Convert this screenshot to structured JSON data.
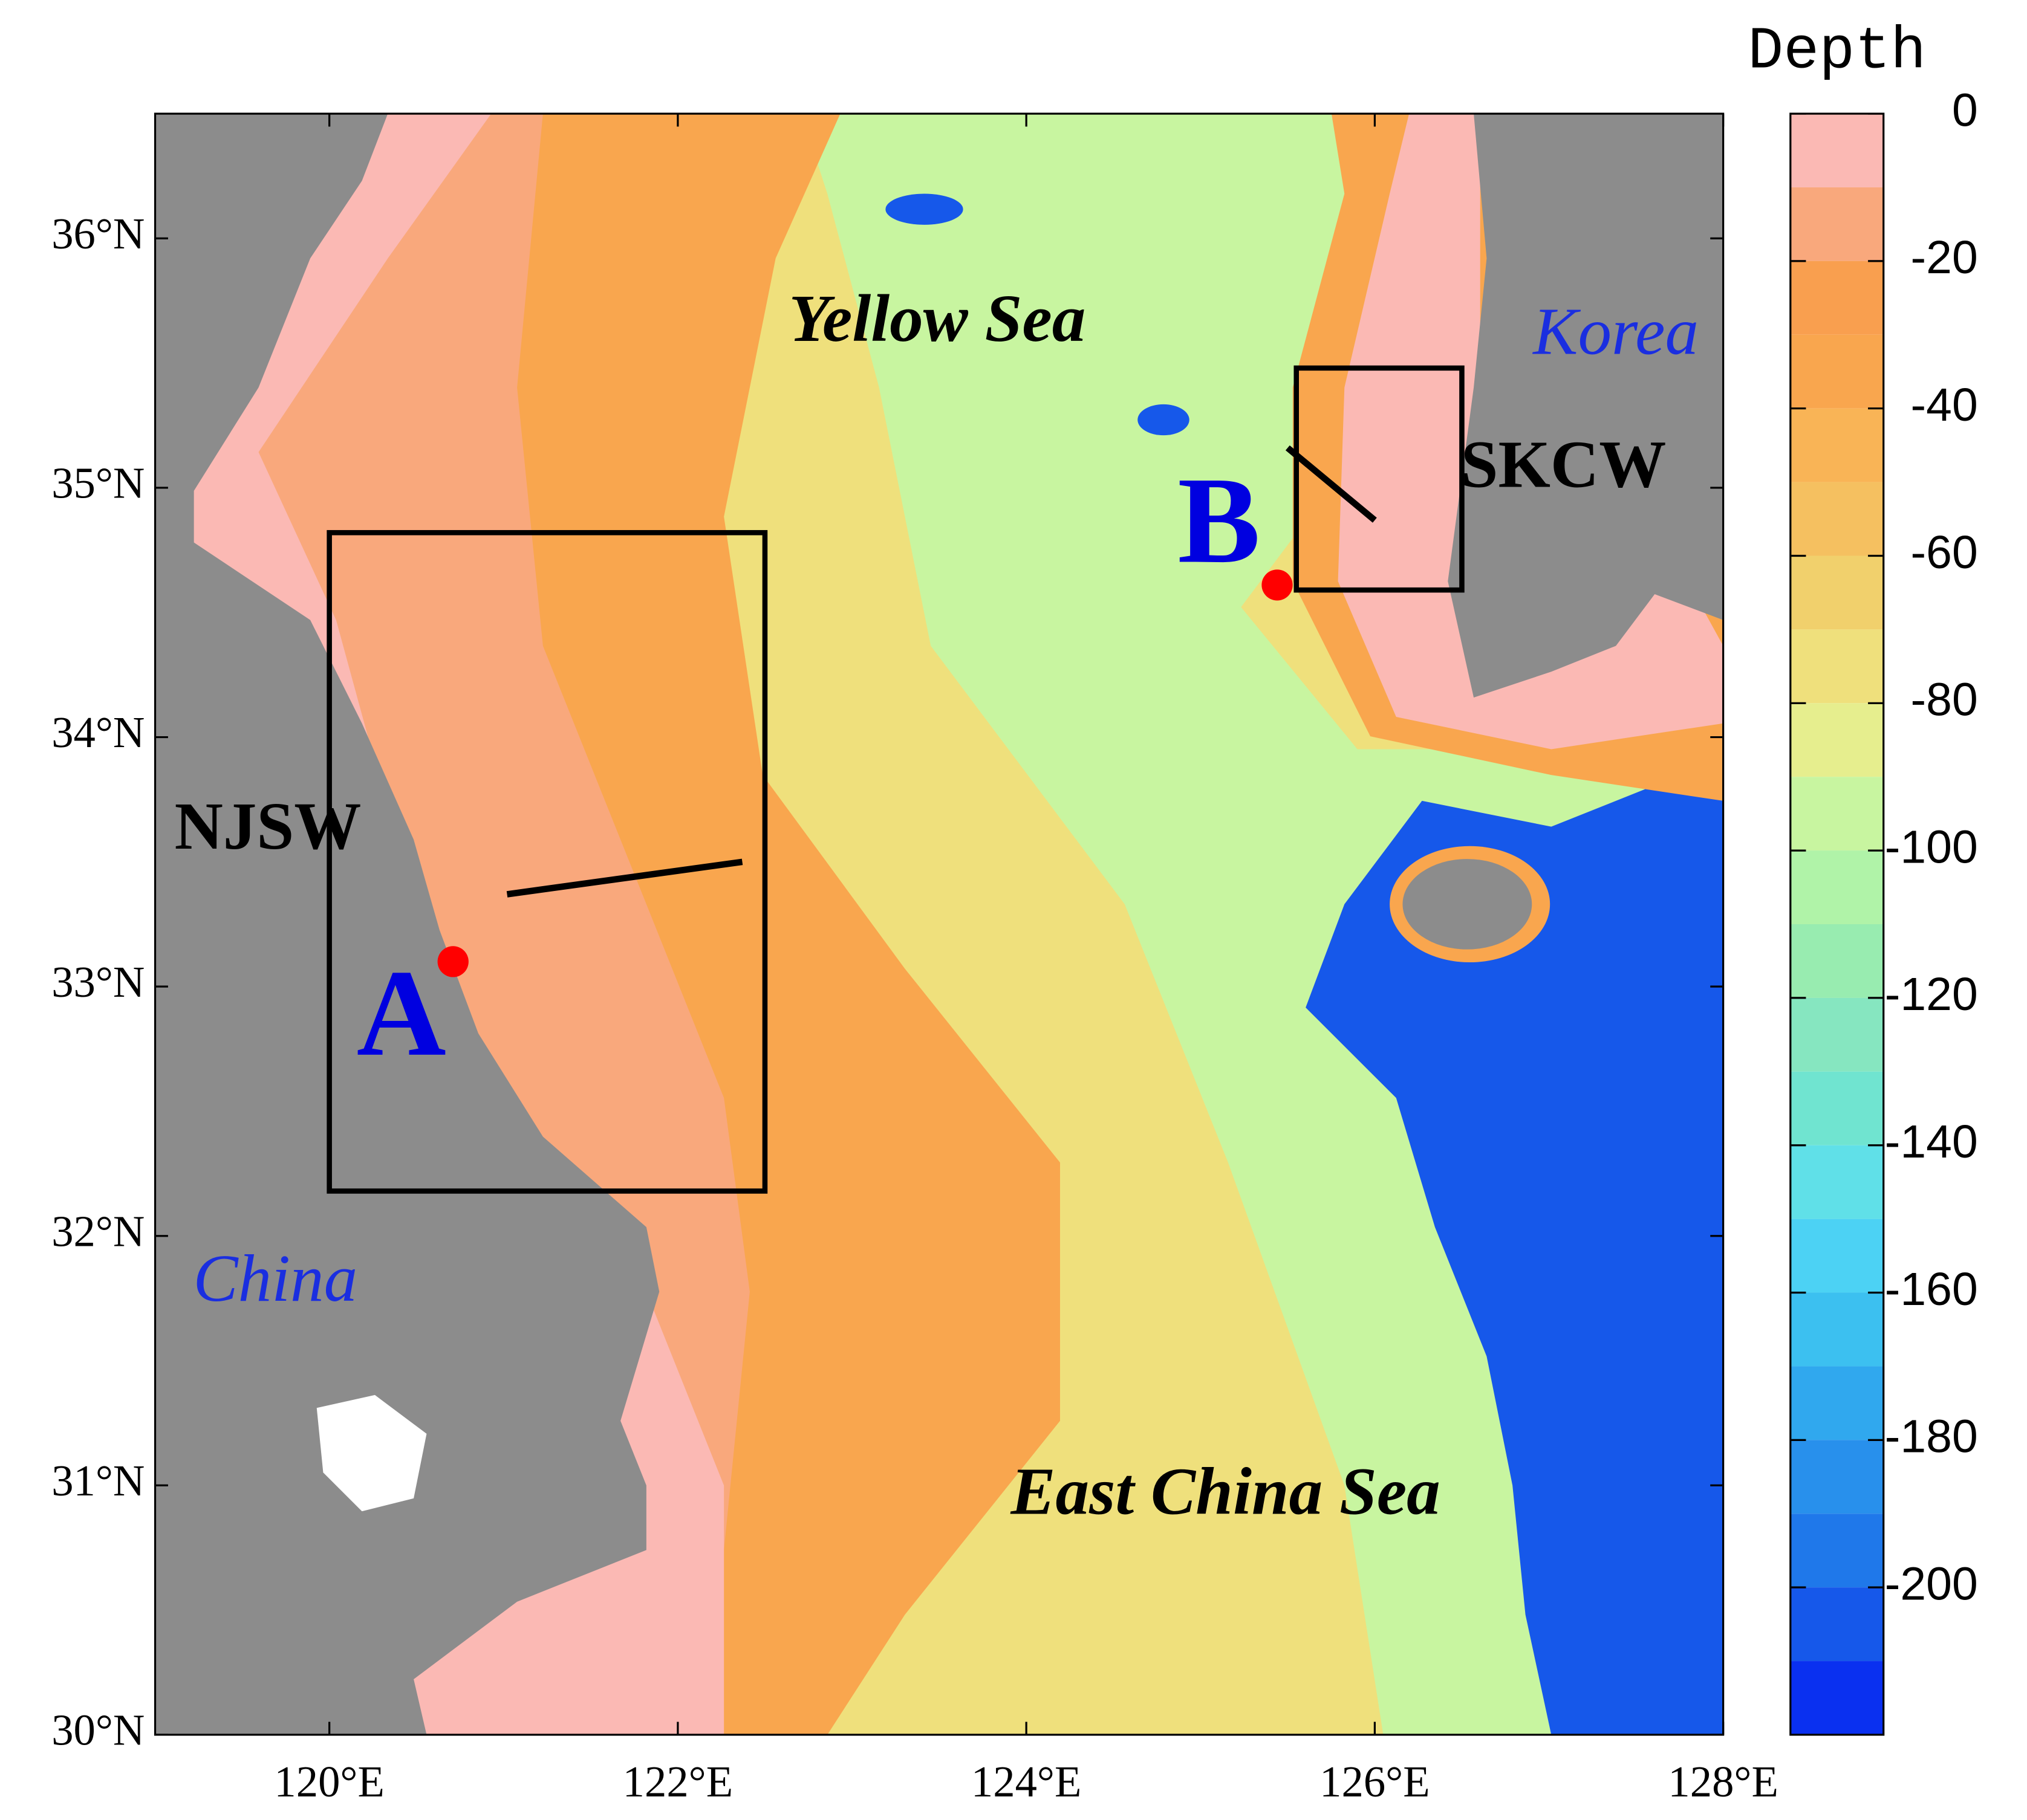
{
  "chart_data": {
    "type": "map",
    "xlim": [
      119,
      128
    ],
    "ylim": [
      30,
      36.5
    ],
    "xticks": [
      {
        "value": 120,
        "label": "120°E"
      },
      {
        "value": 122,
        "label": "122°E"
      },
      {
        "value": 124,
        "label": "124°E"
      },
      {
        "value": 126,
        "label": "126°E"
      },
      {
        "value": 128,
        "label": "128°E"
      }
    ],
    "yticks": [
      {
        "value": 30,
        "label": "30°N"
      },
      {
        "value": 31,
        "label": "31°N"
      },
      {
        "value": 32,
        "label": "32°N"
      },
      {
        "value": 33,
        "label": "33°N"
      },
      {
        "value": 34,
        "label": "34°N"
      },
      {
        "value": 35,
        "label": "35°N"
      },
      {
        "value": 36,
        "label": "36°N"
      }
    ],
    "annotations": [
      "Yellow Sea",
      "East China Sea",
      "Korea",
      "China"
    ],
    "regions": [
      {
        "name": "NJSW",
        "lon": [
          120,
          122.5
        ],
        "lat": [
          32.18,
          34.82
        ]
      },
      {
        "name": "SKCW",
        "lon": [
          125.55,
          126.5
        ],
        "lat": [
          34.59,
          35.48
        ]
      }
    ],
    "transects": [
      {
        "lon": [
          121.02,
          122.37
        ],
        "lat": [
          33.37,
          33.5
        ]
      },
      {
        "lon": [
          125.5,
          126.0
        ],
        "lat": [
          35.16,
          34.87
        ]
      }
    ],
    "points": [
      {
        "name": "A",
        "lon": 120.71,
        "lat": 33.1,
        "color": "#ff0000"
      },
      {
        "name": "B",
        "lon": 125.44,
        "lat": 34.61,
        "color": "#ff0000"
      }
    ],
    "colorbar": {
      "title": "Depth",
      "lim": [
        -220,
        0
      ],
      "step": 10,
      "ticks": [
        0,
        -20,
        -40,
        -60,
        -80,
        -100,
        -120,
        -140,
        -160,
        -180,
        -200
      ],
      "colors": [
        "#fbb9b4",
        "#f9a87c",
        "#f99f4f",
        "#f9a64e",
        "#f9b456",
        "#f5c060",
        "#f1d06c",
        "#efe07c",
        "#e6ee8e",
        "#c8f5a0",
        "#b0f3a8",
        "#98ecb0",
        "#86e6c0",
        "#70e4d0",
        "#60e0e8",
        "#4cd2f4",
        "#3cc0f0",
        "#30a8ee",
        "#2890ec",
        "#1f78ea",
        "#1658ea",
        "#0a30f0"
      ]
    }
  }
}
